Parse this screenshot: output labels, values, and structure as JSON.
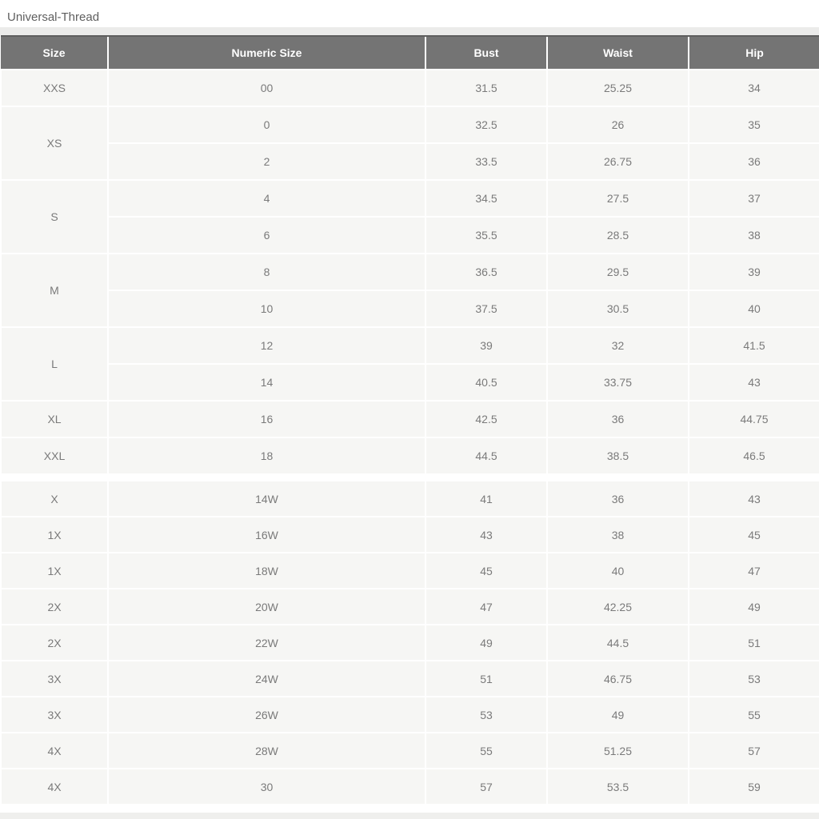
{
  "title": "Universal-Thread",
  "columns": [
    "Size",
    "Numeric Size",
    "Bust",
    "Waist",
    "Hip"
  ],
  "tables": [
    {
      "name": "misses-sizes",
      "groups": [
        {
          "size": "XXS",
          "rows": [
            [
              "00",
              "31.5",
              "25.25",
              "34"
            ]
          ]
        },
        {
          "size": "XS",
          "rows": [
            [
              "0",
              "32.5",
              "26",
              "35"
            ],
            [
              "2",
              "33.5",
              "26.75",
              "36"
            ]
          ]
        },
        {
          "size": "S",
          "rows": [
            [
              "4",
              "34.5",
              "27.5",
              "37"
            ],
            [
              "6",
              "35.5",
              "28.5",
              "38"
            ]
          ]
        },
        {
          "size": "M",
          "rows": [
            [
              "8",
              "36.5",
              "29.5",
              "39"
            ],
            [
              "10",
              "37.5",
              "30.5",
              "40"
            ]
          ]
        },
        {
          "size": "L",
          "rows": [
            [
              "12",
              "39",
              "32",
              "41.5"
            ],
            [
              "14",
              "40.5",
              "33.75",
              "43"
            ]
          ]
        },
        {
          "size": "XL",
          "rows": [
            [
              "16",
              "42.5",
              "36",
              "44.75"
            ]
          ]
        },
        {
          "size": "XXL",
          "rows": [
            [
              "18",
              "44.5",
              "38.5",
              "46.5"
            ]
          ]
        }
      ]
    },
    {
      "name": "plus-sizes",
      "groups": [
        {
          "size": "X",
          "rows": [
            [
              "14W",
              "41",
              "36",
              "43"
            ]
          ]
        },
        {
          "size": "1X",
          "rows": [
            [
              "16W",
              "43",
              "38",
              "45"
            ]
          ]
        },
        {
          "size": "1X",
          "rows": [
            [
              "18W",
              "45",
              "40",
              "47"
            ]
          ]
        },
        {
          "size": "2X",
          "rows": [
            [
              "20W",
              "47",
              "42.25",
              "49"
            ]
          ]
        },
        {
          "size": "2X",
          "rows": [
            [
              "22W",
              "49",
              "44.5",
              "51"
            ]
          ]
        },
        {
          "size": "3X",
          "rows": [
            [
              "24W",
              "51",
              "46.75",
              "53"
            ]
          ]
        },
        {
          "size": "3X",
          "rows": [
            [
              "26W",
              "53",
              "49",
              "55"
            ]
          ]
        },
        {
          "size": "4X",
          "rows": [
            [
              "28W",
              "55",
              "51.25",
              "57"
            ]
          ]
        },
        {
          "size": "4X",
          "rows": [
            [
              "30",
              "57",
              "53.5",
              "59"
            ]
          ]
        }
      ]
    }
  ],
  "colors": {
    "header_bg": "#747474",
    "header_text": "#ffffff",
    "row_bg": "#f6f6f4",
    "body_text": "#7a7a7a",
    "title_text": "#5f5f5f",
    "strip": "#ebebea",
    "grid_border": "#ffffff"
  }
}
